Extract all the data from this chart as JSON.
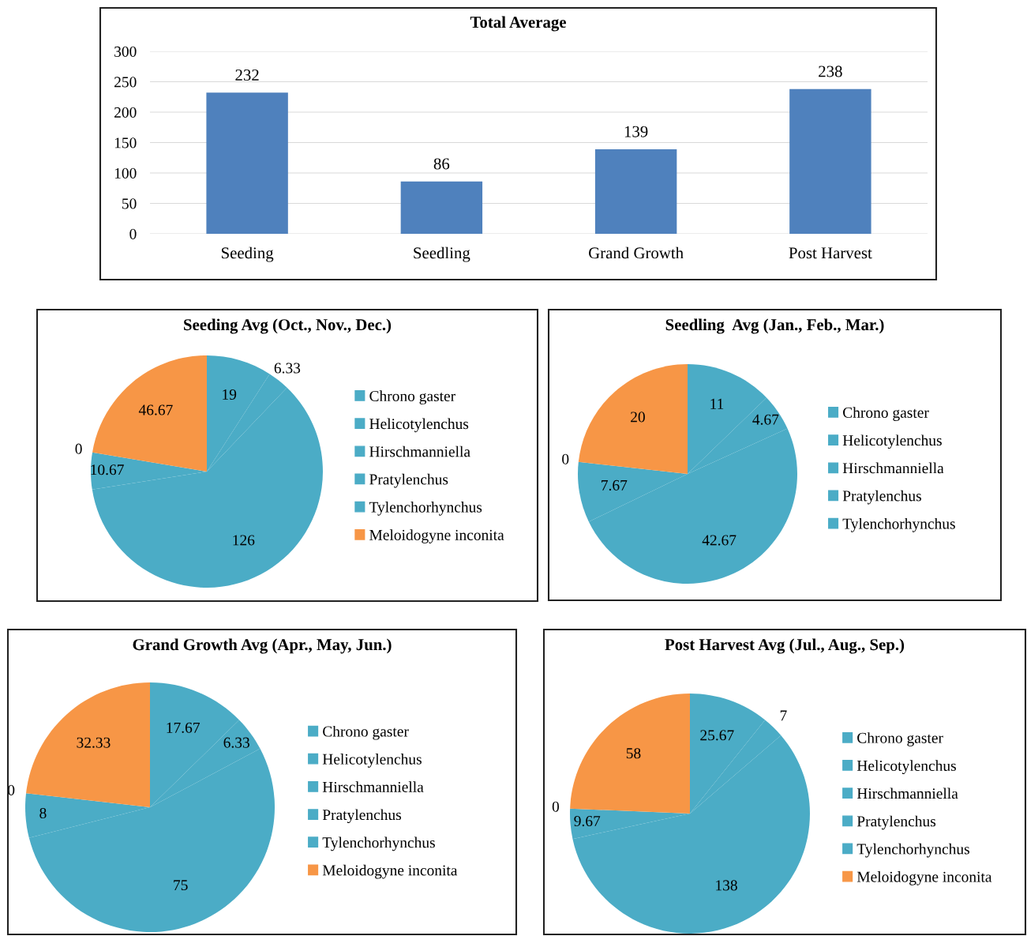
{
  "chart_data": [
    {
      "type": "bar",
      "title": "Total Average",
      "categories": [
        "Seeding",
        "Seedling",
        "Grand Growth",
        "Post Harvest"
      ],
      "values": [
        232,
        86,
        139,
        238
      ],
      "color": "#4f81bd",
      "ylim": [
        0,
        300
      ],
      "yticks": [
        0,
        50,
        100,
        150,
        200,
        250,
        300
      ],
      "grid": "y",
      "data_labels": true
    },
    {
      "type": "pie",
      "title": "Seeding Avg (Oct., Nov., Dec.)",
      "categories": [
        "Chrono gaster",
        "Helicotylenchus",
        "Hirschmanniella",
        "Pratylenchus",
        "Tylenchorhynchus",
        "Meloidogyne inconita"
      ],
      "values": [
        19,
        6.33,
        126,
        10.67,
        0,
        46.67
      ],
      "colors": [
        "#4bacc6",
        "#4bacc6",
        "#4bacc6",
        "#4bacc6",
        "#4bacc6",
        "#f79646"
      ],
      "value_labels": [
        "19",
        "6.33",
        "126",
        "10.67",
        "0",
        "46.67"
      ],
      "legend": "right"
    },
    {
      "type": "pie",
      "title": "Seedling  Avg (Jan., Feb., Mar.)",
      "categories": [
        "Chrono gaster",
        "Helicotylenchus",
        "Hirschmanniella",
        "Pratylenchus",
        "Tylenchorhynchus",
        null
      ],
      "values": [
        11,
        4.67,
        42.67,
        7.67,
        0,
        20
      ],
      "colors": [
        "#4bacc6",
        "#4bacc6",
        "#4bacc6",
        "#4bacc6",
        "#4bacc6",
        "#f79646"
      ],
      "value_labels": [
        "11",
        "4.67",
        "42.67",
        "7.67",
        "0",
        "20"
      ],
      "legend": "right"
    },
    {
      "type": "pie",
      "title": "Grand Growth Avg (Apr., May, Jun.)",
      "categories": [
        "Chrono gaster",
        "Helicotylenchus",
        "Hirschmanniella",
        "Pratylenchus",
        "Tylenchorhynchus",
        "Meloidogyne inconita"
      ],
      "values": [
        17.67,
        6.33,
        75,
        8,
        0,
        32.33
      ],
      "colors": [
        "#4bacc6",
        "#4bacc6",
        "#4bacc6",
        "#4bacc6",
        "#4bacc6",
        "#f79646"
      ],
      "value_labels": [
        "17.67",
        "6.33",
        "75",
        "8",
        "0",
        "32.33"
      ],
      "legend": "right"
    },
    {
      "type": "pie",
      "title": "Post Harvest Avg (Jul., Aug., Sep.)",
      "categories": [
        "Chrono gaster",
        "Helicotylenchus",
        "Hirschmanniella",
        "Pratylenchus",
        "Tylenchorhynchus",
        "Meloidogyne inconita"
      ],
      "values": [
        25.67,
        7,
        138,
        9.67,
        0,
        58
      ],
      "colors": [
        "#4bacc6",
        "#4bacc6",
        "#4bacc6",
        "#4bacc6",
        "#4bacc6",
        "#f79646"
      ],
      "value_labels": [
        "25.67",
        "7",
        "138",
        "9.67",
        "0",
        "58"
      ],
      "legend": "right"
    }
  ]
}
